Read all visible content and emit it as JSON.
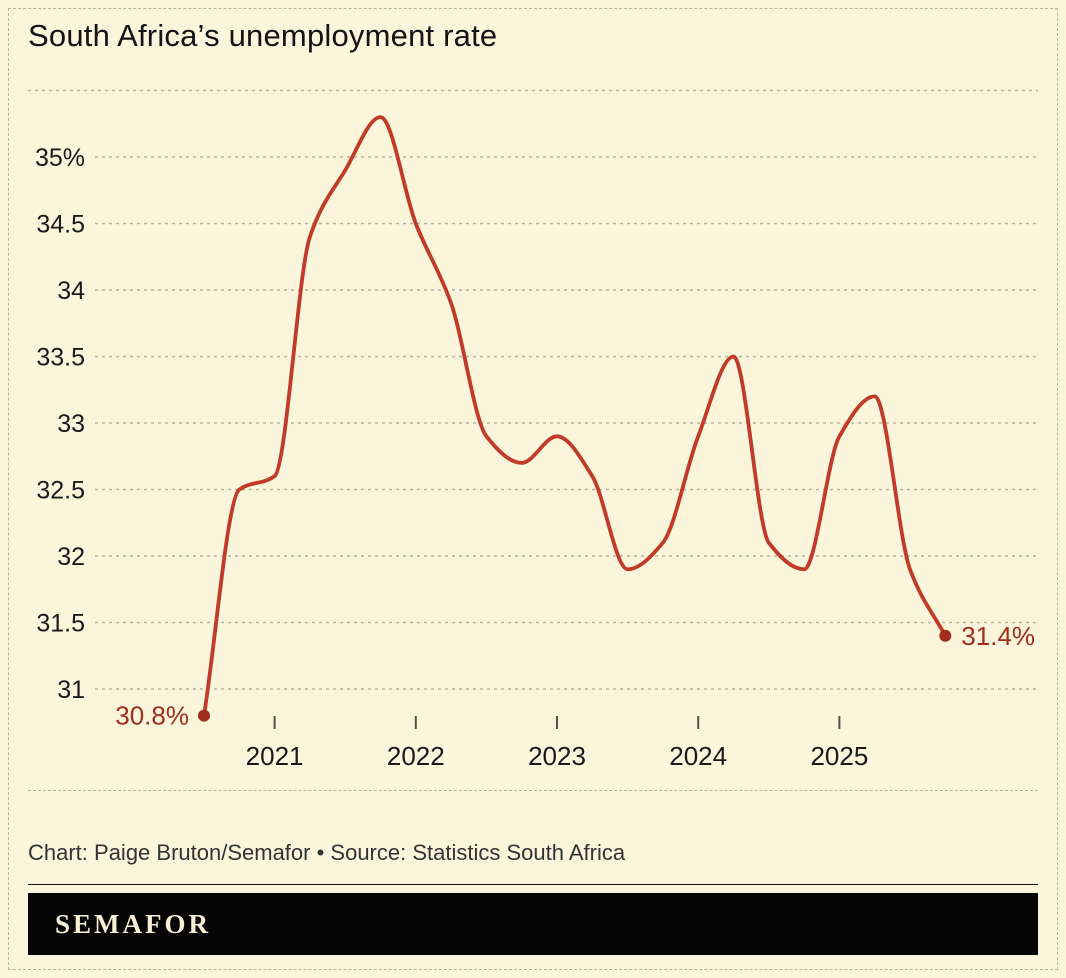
{
  "page": {
    "background": "#fbf5dc",
    "border_color": "#b9b2a0"
  },
  "chart_data": {
    "type": "line",
    "title": "South Africa’s unemployment rate",
    "series": [
      {
        "name": "Unemployment rate (%)",
        "x": [
          "2020 Q3",
          "2020 Q4",
          "2021 Q1",
          "2021 Q2",
          "2021 Q3",
          "2021 Q4",
          "2022 Q1",
          "2022 Q2",
          "2022 Q3",
          "2022 Q4",
          "2023 Q1",
          "2023 Q2",
          "2023 Q3",
          "2023 Q4",
          "2024 Q1",
          "2024 Q2",
          "2024 Q3",
          "2024 Q4",
          "2025 Q1",
          "2025 Q2",
          "2025 Q3",
          "2025 Q4"
        ],
        "values": [
          30.8,
          32.5,
          32.6,
          34.4,
          34.9,
          35.3,
          34.5,
          33.9,
          32.9,
          32.7,
          32.9,
          32.6,
          31.9,
          32.1,
          32.9,
          33.5,
          32.1,
          31.9,
          32.9,
          33.2,
          31.9,
          31.4
        ]
      }
    ],
    "x_ticks": [
      {
        "label": "2021",
        "index": 2
      },
      {
        "label": "2022",
        "index": 6
      },
      {
        "label": "2023",
        "index": 10
      },
      {
        "label": "2024",
        "index": 14
      },
      {
        "label": "2025",
        "index": 18
      }
    ],
    "y_ticks": [
      {
        "value": 35,
        "label": "35%"
      },
      {
        "value": 34.5,
        "label": "34.5"
      },
      {
        "value": 34,
        "label": "34"
      },
      {
        "value": 33.5,
        "label": "33.5"
      },
      {
        "value": 33,
        "label": "33"
      },
      {
        "value": 32.5,
        "label": "32.5"
      },
      {
        "value": 32,
        "label": "32"
      },
      {
        "value": 31.5,
        "label": "31.5"
      },
      {
        "value": 31,
        "label": "31"
      }
    ],
    "y_grid_unlabeled": [
      35.5
    ],
    "ylim": [
      30.6,
      35.6
    ],
    "grid": "dashed",
    "legend": "none",
    "annotations": [
      {
        "text": "30.8%",
        "point_index": 0,
        "position": "left"
      },
      {
        "text": "31.4%",
        "point_index": 21,
        "position": "right"
      }
    ],
    "colors": {
      "line": "#c03b28",
      "point": "#a02e1c",
      "annotation": "#a02e1c",
      "grid": "#b7b1a0",
      "axis_text": "#1a1a1a"
    }
  },
  "footer": {
    "credit": "Chart: Paige Bruton/Semafor • Source: Statistics South Africa"
  },
  "logo": {
    "wordmark": "SEMAFOR"
  }
}
